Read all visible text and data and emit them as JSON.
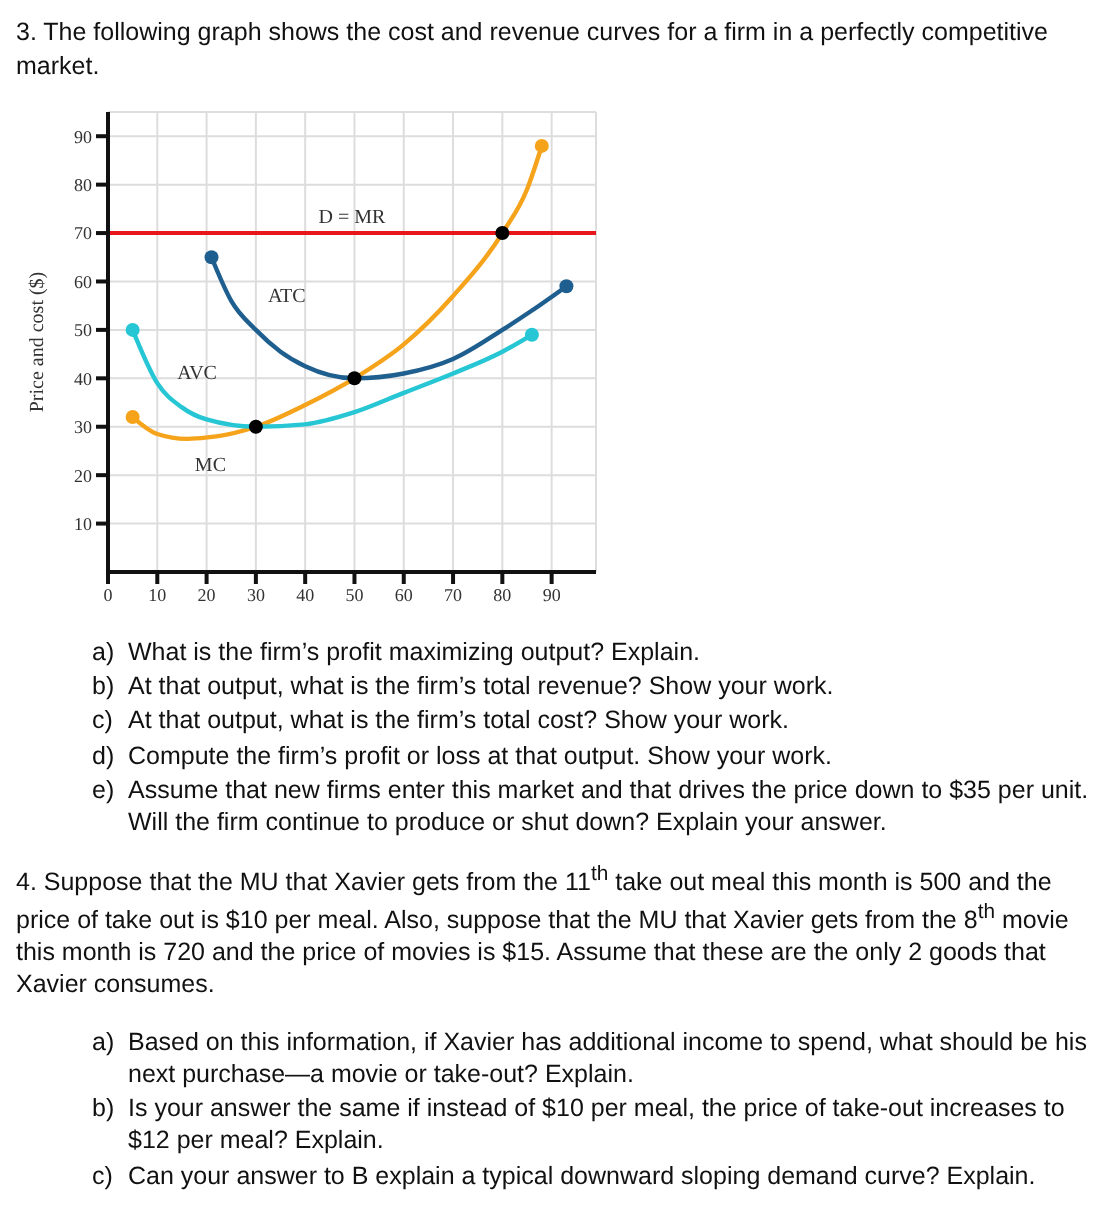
{
  "chart_data": {
    "type": "line",
    "title": "3. The following graph shows the cost and revenue curves for a firm in a perfectly competitive market.",
    "ylabel": "Price and cost ($)",
    "xlim": [
      0,
      99
    ],
    "ylim": [
      0,
      95
    ],
    "xticks": [
      0,
      10,
      20,
      30,
      40,
      50,
      60,
      70,
      80,
      90
    ],
    "yticks": [
      10,
      20,
      30,
      40,
      50,
      60,
      70,
      80,
      90
    ],
    "grid": true,
    "series": [
      {
        "name": "MC",
        "color": "#f5a31a",
        "x": [
          5,
          10,
          16,
          22,
          30,
          40,
          50,
          60,
          70,
          80,
          85,
          88
        ],
        "values": [
          32,
          28.5,
          27.5,
          28,
          30,
          34.5,
          40,
          47,
          57,
          70,
          79,
          88
        ]
      },
      {
        "name": "AVC",
        "color": "#26c6d4",
        "x": [
          5,
          10,
          15,
          20,
          30,
          40,
          50,
          60,
          70,
          80,
          86
        ],
        "values": [
          50,
          39,
          34,
          31.5,
          30,
          30.5,
          33,
          37,
          41,
          45.5,
          49
        ]
      },
      {
        "name": "ATC",
        "color": "#1f5f8f",
        "x": [
          21,
          25,
          30,
          35,
          40,
          50,
          60,
          70,
          80,
          86,
          93
        ],
        "values": [
          65,
          56,
          50,
          45.5,
          42.5,
          40,
          41,
          44,
          50,
          54,
          59
        ]
      },
      {
        "type": "scatter",
        "color": "#000000",
        "x": [
          30,
          50,
          80
        ],
        "values": [
          30,
          40,
          70
        ]
      }
    ],
    "ref_lines": [
      {
        "axis": "y",
        "value": 70,
        "label": "D = MR",
        "color": "#e8161b"
      }
    ],
    "annotations": [
      "a)\tWhat is the firm’s profit maximizing output? Explain.",
      "b)\tAt that output, what is the firm’s total revenue? Show your work.",
      "c)\tAt that output, what is the firm’s total cost? Show your work.",
      "d)\tCompute the firm’s profit or loss at that output. Show your work.",
      "e)\tAssume that new firms enter this market and that drives the price down to $35 per unit. Will the firm continue to produce or shut down? Explain your answer.",
      "4. Suppose that the MU that Xavier gets from the 11$^{th}$ take out meal this month is 500 and the price of take out is $10 per meal. Also, suppose that the MU that Xavier gets from the 8$^{th}$ movie this month is 720 and the price of movies is $15. Assume that these are the only 2 goods that Xavier consumes.",
      "a)\tBased on this information, if Xavier has additional income to spend, what should be his next purchase—a movie or take-out? Explain.",
      "b)\tIs your answer the same if instead of $10 per meal, the price of take-out increases to $12 per meal? Explain.",
      "c)\tCan your answer to B explain a typical downward sloping demand curve? Explain."
    ]
  }
}
